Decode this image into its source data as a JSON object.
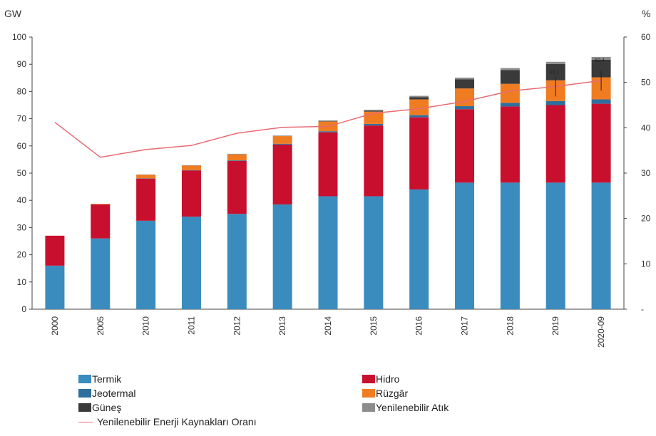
{
  "chart_data": {
    "type": "bar",
    "stacked": true,
    "left_axis_unit": "GW",
    "right_axis_unit": "%",
    "ylim": [
      0,
      100
    ],
    "y2lim": [
      0,
      60
    ],
    "yticks": [
      "0",
      "10",
      "20",
      "30",
      "40",
      "50",
      "60",
      "70",
      "80",
      "90",
      "100"
    ],
    "y2ticks": [
      "-",
      "10",
      "20",
      "30",
      "40",
      "50",
      "60"
    ],
    "categories": [
      "2000",
      "2005",
      "2010",
      "2011",
      "2012",
      "2013",
      "2014",
      "2015",
      "2016",
      "2017",
      "2018",
      "2019",
      "2020-09"
    ],
    "series": [
      {
        "name": "Termik",
        "color": "#3a8cbf",
        "values": [
          16,
          26,
          32.5,
          34,
          35,
          38.5,
          41.5,
          41.5,
          44,
          46.5,
          46.5,
          46.5,
          46.5
        ]
      },
      {
        "name": "Hidro",
        "color": "#c8102e",
        "values": [
          11,
          12.5,
          15.5,
          17,
          19.5,
          22,
          23.5,
          26,
          26.5,
          27,
          28,
          28.5,
          29
        ]
      },
      {
        "name": "Jeotermal",
        "color": "#2f6f9e",
        "values": [
          0,
          0,
          0.1,
          0.1,
          0.2,
          0.3,
          0.4,
          0.6,
          0.8,
          1.1,
          1.3,
          1.5,
          1.6
        ]
      },
      {
        "name": "Rüzgâr",
        "color": "#f07c22",
        "values": [
          0,
          0.2,
          1.3,
          1.7,
          2.2,
          2.8,
          3.6,
          4.5,
          5.8,
          6.5,
          7,
          7.6,
          8.1
        ]
      },
      {
        "name": "Güneş",
        "color": "#3a3a3a",
        "values": [
          0,
          0,
          0,
          0,
          0,
          0,
          0.05,
          0.3,
          0.8,
          3.4,
          5.1,
          6,
          6.5
        ]
      },
      {
        "name": "Yenilenebilir Atık",
        "color": "#8c8c8c",
        "values": [
          0,
          0,
          0.1,
          0.1,
          0.2,
          0.2,
          0.3,
          0.4,
          0.5,
          0.6,
          0.7,
          0.8,
          1.0
        ]
      }
    ],
    "line": {
      "name": "Yenilenebilir Enerji Kaynakları Oranı",
      "color": "#e86a72",
      "axis": "right",
      "values": [
        41.2,
        33.5,
        35.2,
        36.1,
        38.8,
        40.1,
        40.3,
        43.2,
        44.2,
        45.8,
        48.1,
        49.1,
        50.4
      ]
    },
    "annotations": [
      {
        "category": "2019",
        "text": "49.1"
      },
      {
        "category": "2020-09",
        "text": "50.4"
      }
    ],
    "legend_position": "bottom"
  },
  "legend": {
    "items": [
      {
        "label": "Termik",
        "color": "#3a8cbf"
      },
      {
        "label": "Hidro",
        "color": "#c8102e"
      },
      {
        "label": "Jeotermal",
        "color": "#2f6f9e"
      },
      {
        "label": "Rüzgâr",
        "color": "#f07c22"
      },
      {
        "label": "Güneş",
        "color": "#3a3a3a"
      },
      {
        "label": "Yenilenebilir Atık",
        "color": "#8c8c8c"
      }
    ],
    "line_label": "Yenilenebilir Enerji Kaynakları Oranı"
  }
}
